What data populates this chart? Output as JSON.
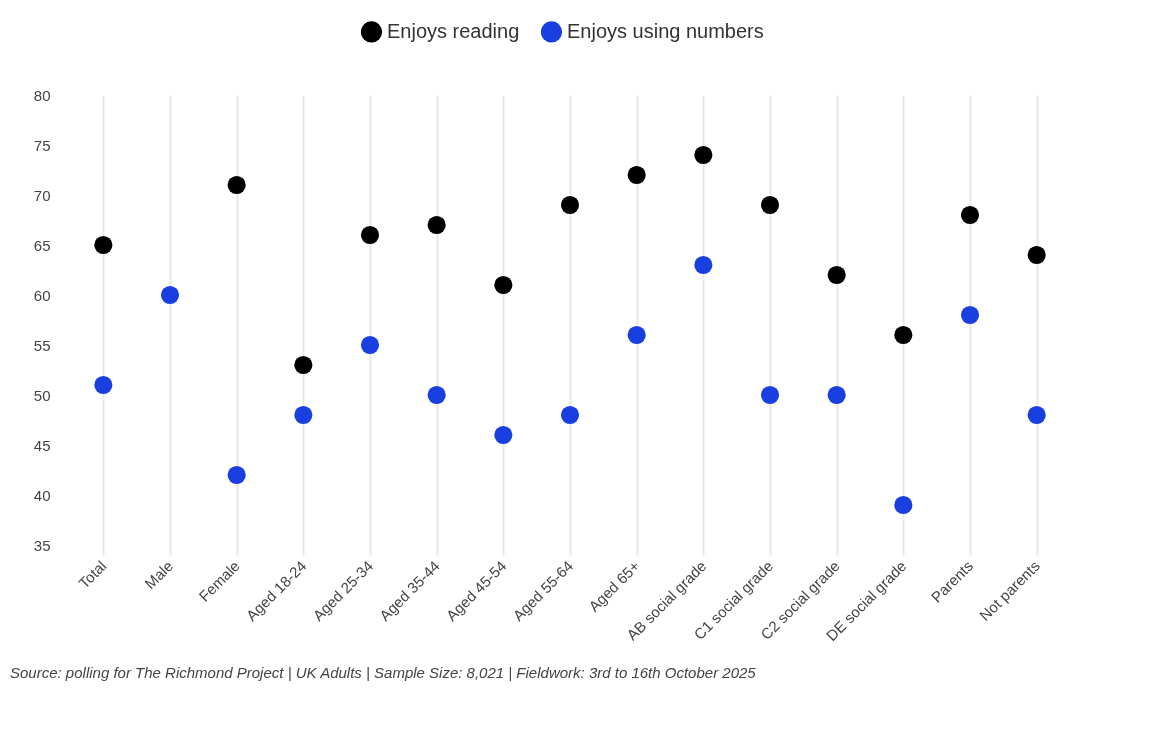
{
  "chart_data": {
    "type": "scatter",
    "categories": [
      "Total",
      "Male",
      "Female",
      "Aged 18-24",
      "Aged 25-34",
      "Aged 35-44",
      "Aged 45-54",
      "Aged 55-64",
      "Aged 65+",
      "AB social grade",
      "C1 social grade",
      "C2 social grade",
      "DE social grade",
      "Parents",
      "Not parents"
    ],
    "series": [
      {
        "name": "Enjoys reading",
        "color": "#000000",
        "values": [
          65,
          null,
          71,
          53,
          66,
          67,
          61,
          69,
          72,
          74,
          69,
          62,
          56,
          68,
          64
        ]
      },
      {
        "name": "Enjoys using numbers",
        "color": "#1a3fe0",
        "values": [
          51,
          60,
          42,
          48,
          55,
          50,
          46,
          48,
          56,
          63,
          50,
          50,
          39,
          58,
          48
        ]
      }
    ],
    "ylim": [
      34,
      80
    ],
    "yticks": [
      35,
      40,
      45,
      50,
      55,
      60,
      65,
      70,
      75,
      80
    ],
    "grid": "x",
    "legend": "top",
    "marker": "circle",
    "annotations": [
      "Source: polling for The Richmond Project | UK Adults | Sample Size: 8,021 | Fieldwork: 3rd to 16th October 2025"
    ]
  }
}
